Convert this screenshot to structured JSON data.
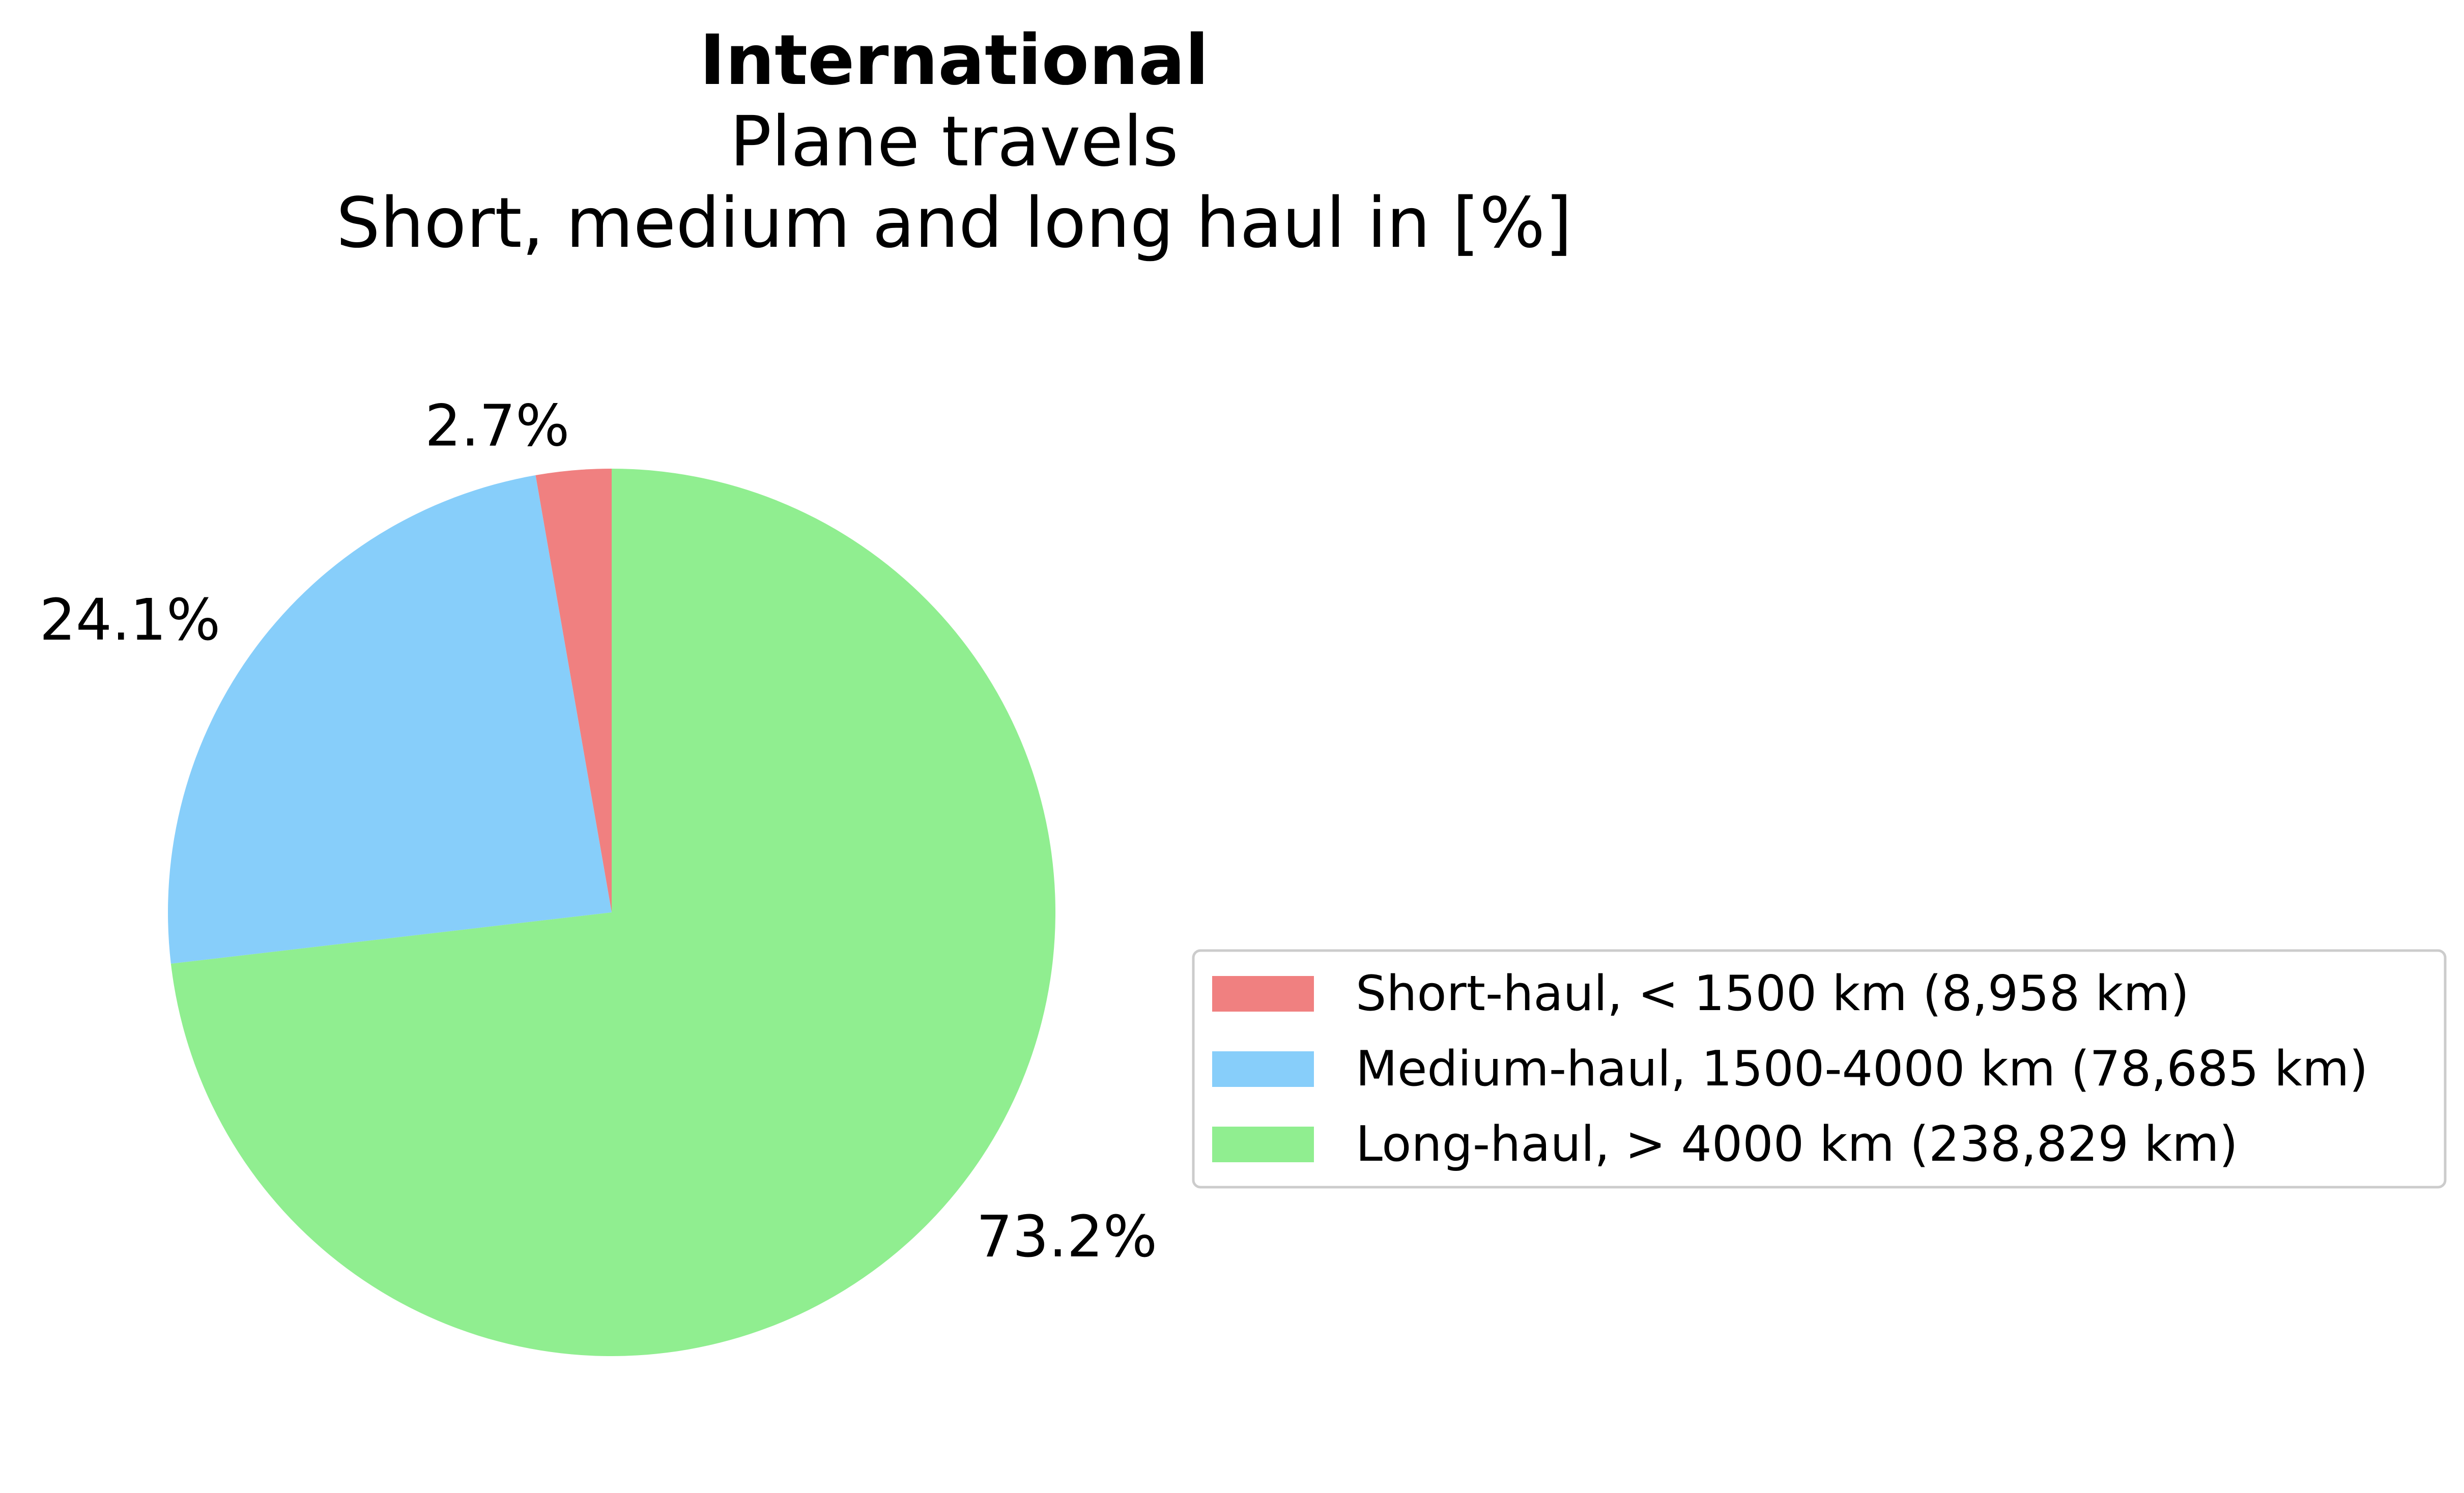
{
  "chart_data": {
    "type": "pie",
    "title": "International",
    "subtitle_lines": [
      "Plane travels",
      "Short, medium and long haul in [%]"
    ],
    "slices": [
      {
        "label": "Short-haul, < 1500 km (8,958 km)",
        "value": 8958,
        "pct_label": "2.7%",
        "color": "#f08080"
      },
      {
        "label": "Medium-haul, 1500-4000 km (78,685 km)",
        "value": 78685,
        "pct_label": "24.1%",
        "color": "#87cefa"
      },
      {
        "label": "Long-haul, > 4000 km (238,829 km)",
        "value": 238829,
        "pct_label": "73.2%",
        "color": "#90ee90"
      }
    ],
    "start_angle": "top",
    "direction": "counterclockwise",
    "legend_position": "right"
  }
}
